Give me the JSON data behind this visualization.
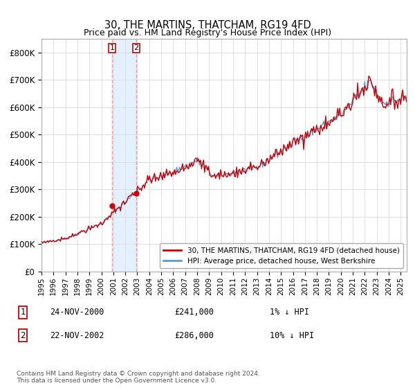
{
  "title": "30, THE MARTINS, THATCHAM, RG19 4FD",
  "subtitle": "Price paid vs. HM Land Registry's House Price Index (HPI)",
  "ylabel_ticks": [
    "£0",
    "£100K",
    "£200K",
    "£300K",
    "£400K",
    "£500K",
    "£600K",
    "£700K",
    "£800K"
  ],
  "ytick_values": [
    0,
    100000,
    200000,
    300000,
    400000,
    500000,
    600000,
    700000,
    800000
  ],
  "ylim": [
    0,
    850000
  ],
  "xlim_start": 1995.0,
  "xlim_end": 2025.5,
  "hpi_color": "#5b9bd5",
  "price_color": "#cc0000",
  "transaction1_date": 2000.9,
  "transaction1_value": 241000,
  "transaction2_date": 2002.9,
  "transaction2_value": 286000,
  "legend_label1": "30, THE MARTINS, THATCHAM, RG19 4FD (detached house)",
  "legend_label2": "HPI: Average price, detached house, West Berkshire",
  "table_row1_num": "1",
  "table_row1_date": "24-NOV-2000",
  "table_row1_price": "£241,000",
  "table_row1_hpi": "1% ↓ HPI",
  "table_row2_num": "2",
  "table_row2_date": "22-NOV-2002",
  "table_row2_price": "£286,000",
  "table_row2_hpi": "10% ↓ HPI",
  "footer": "Contains HM Land Registry data © Crown copyright and database right 2024.\nThis data is licensed under the Open Government Licence v3.0.",
  "background_color": "#ffffff",
  "plot_bg_color": "#ffffff",
  "grid_color": "#dddddd",
  "span_color": "#ddeeff",
  "vline_color": "#ff9999"
}
